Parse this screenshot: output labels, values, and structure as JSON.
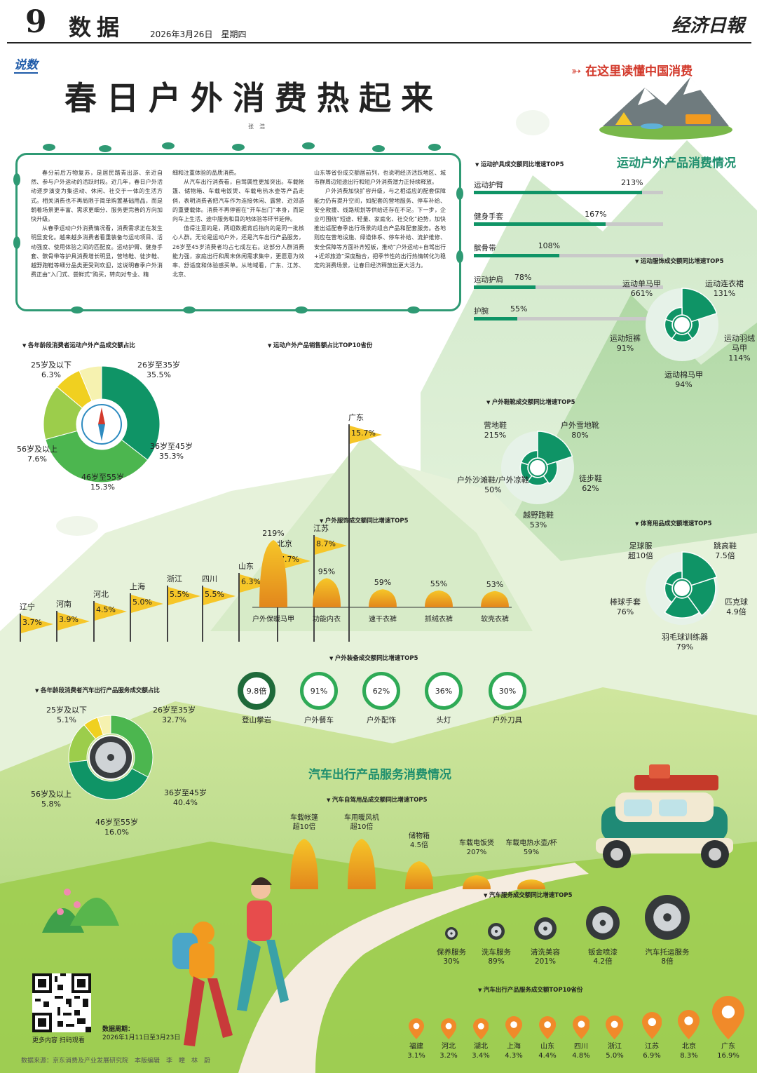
{
  "header": {
    "page_number": "9",
    "section": "数据",
    "date": "2026年3月26日　星期四",
    "logo": "经济日報"
  },
  "tag_label": "说数",
  "main_title": "春日户外消费热起来",
  "byline": "张　浩",
  "promo_tag": "在这里读懂中国消费",
  "article": {
    "col1": [
      "春分前后万物复苏，是居民踏青出游、亲近自然、参与户外运动的活跃时段。近几年，春日户外活动逐步演变为集运动、休闲、社交于一体的生活方式。相关消费也不再局限于简单购置基础用品，而是朝着场景更丰富、需求更细分、服务更完善的方向加快升级。",
      "从春季运动户外消费情况看，消费需求正在发生明显变化。越来越多消费者看重装备与运动项目、活动强度、使用体验之间的匹配度。运动护臂、健身手套、髌骨带等护具消费增长明显，营地鞋、徒步鞋、越野跑鞋等细分品类更受到欢迎，这说明春季户外消费正由“入门式、尝鲜式”购买，转向对专业、精"
    ],
    "col2": [
      "细和注重体验的品质消费。",
      "从汽车出行消费看，自驾属性更加突出。车载帐篷、储物箱、车载电饭煲、车载电热水壶等产品走俏，表明消费者把汽车作为连接休闲、露营、近郊游的重要载体。消费不再停留在“开车出门”本身，而是向车上生活、途中服务和目的地体验等环节延伸。",
      "值得注意的是，两组数据背后指向的是同一批核心人群。无论是运动户外，还是汽车出行产品服务，26岁至45岁消费者均占七成左右。这部分人群消费能力强，家庭出行和周末休闲需求集中，更愿意为效率、舒适度和体验感买单。从地域看，广东、江苏、北京、"
    ],
    "col3": [
      "山东等省份成交额居前列，也说明经济活跃地区、城市群周边短途出行和短户外消费潜力正持续释放。",
      "户外消费加快扩容升级，与之相适应的配套保障能力仍有提升空间，如配套的营地服务、停车补给、安全救援、线路规划等供给还存在不足。下一步，企业可围绕“短途、轻量、家庭化、社交化”趋势，加快推出适配春季出行场景的组合产品和配套服务。各地则应在营地设施、绿道体系、停车补给、流护维修、安全保障等方面补齐短板，推动“户外运动+自驾出行+近郊旅游”深度融合，把季节性的出行热情转化为稳定的消费场景，让春日经济释放出更大活力。"
    ]
  },
  "section_titles": {
    "outdoor": "运动户外产品消费情况",
    "auto": "汽车出行产品服务消费情况"
  },
  "age_outdoor": {
    "title": "各年龄段消费者运动户外产品成交额占比",
    "slices": [
      {
        "label": "26岁至35岁",
        "value": 35.5,
        "display": "35.5%",
        "color": "#0f9466"
      },
      {
        "label": "36岁至45岁",
        "value": 35.3,
        "display": "35.3%",
        "color": "#4cb64f"
      },
      {
        "label": "46岁至55岁",
        "value": 15.3,
        "display": "15.3%",
        "color": "#9ccd4b"
      },
      {
        "label": "56岁及以上",
        "value": 7.6,
        "display": "7.6%",
        "color": "#f0d020"
      },
      {
        "label": "25岁及以下",
        "value": 6.3,
        "display": "6.3%",
        "color": "#f6f2b0"
      }
    ]
  },
  "provinces_top10": {
    "title": "运动户外产品销售额占比TOP10省份",
    "items": [
      {
        "name": "辽宁",
        "display": "3.7%",
        "value": 3.7
      },
      {
        "name": "河南",
        "display": "3.9%",
        "value": 3.9
      },
      {
        "name": "河北",
        "display": "4.5%",
        "value": 4.5
      },
      {
        "name": "上海",
        "display": "5.0%",
        "value": 5.0
      },
      {
        "name": "浙江",
        "display": "5.5%",
        "value": 5.5
      },
      {
        "name": "四川",
        "display": "5.5%",
        "value": 5.5
      },
      {
        "name": "山东",
        "display": "6.3%",
        "value": 6.3
      },
      {
        "name": "北京",
        "display": "7.7%",
        "value": 7.7
      },
      {
        "name": "江苏",
        "display": "8.7%",
        "value": 8.7
      },
      {
        "name": "广东",
        "display": "15.7%",
        "value": 15.7
      }
    ]
  },
  "protective_gear": {
    "title": "运动护具成交额同比增速TOP5",
    "items": [
      {
        "name": "运动护臂",
        "display": "213%",
        "value": 213
      },
      {
        "name": "健身手套",
        "display": "167%",
        "value": 167
      },
      {
        "name": "髌骨带",
        "display": "108%",
        "value": 108
      },
      {
        "name": "运动护肩",
        "display": "78%",
        "value": 78
      },
      {
        "name": "护腕",
        "display": "55%",
        "value": 55
      }
    ]
  },
  "apparel": {
    "title": "运动服饰成交额同比增速TOP5",
    "items": [
      {
        "name": "运动单马甲",
        "display": "661%",
        "value": 661
      },
      {
        "name": "运动连衣裙",
        "display": "131%",
        "value": 131
      },
      {
        "name": "运动羽绒马甲",
        "display": "114%",
        "value": 114
      },
      {
        "name": "运动棉马甲",
        "display": "94%",
        "value": 94
      },
      {
        "name": "运动短裤",
        "display": "91%",
        "value": 91
      }
    ]
  },
  "shoes": {
    "title": "户外鞋靴成交额同比增速TOP5",
    "items": [
      {
        "name": "营地鞋",
        "display": "215%",
        "value": 215
      },
      {
        "name": "户外雪地靴",
        "display": "80%",
        "value": 80
      },
      {
        "name": "徒步鞋",
        "display": "62%",
        "value": 62
      },
      {
        "name": "越野跑鞋",
        "display": "53%",
        "value": 53
      },
      {
        "name": "户外沙滩鞋/户外凉鞋",
        "display": "50%",
        "value": 50
      }
    ]
  },
  "sports_goods": {
    "title": "体育用品成交额增速TOP5",
    "items": [
      {
        "name": "足球服",
        "display": "超10倍",
        "value": 10
      },
      {
        "name": "跳高鞋",
        "display": "7.5倍",
        "value": 7.5
      },
      {
        "name": "匹克球",
        "display": "4.9倍",
        "value": 4.9
      },
      {
        "name": "羽毛球训练器",
        "display": "79%",
        "value": 0.79
      },
      {
        "name": "棒球手套",
        "display": "76%",
        "value": 0.76
      }
    ]
  },
  "outdoor_clothing": {
    "title": "户外服饰成交额同比增速TOP5",
    "items": [
      {
        "name": "户外保暖马甲",
        "display": "219%",
        "value": 219
      },
      {
        "name": "功能内衣",
        "display": "95%",
        "value": 95
      },
      {
        "name": "速干衣裤",
        "display": "59%",
        "value": 59
      },
      {
        "name": "抓绒衣裤",
        "display": "55%",
        "value": 55
      },
      {
        "name": "软壳衣裤",
        "display": "53%",
        "value": 53
      }
    ]
  },
  "equipment": {
    "title": "户外装备成交额同比增速TOP5",
    "items": [
      {
        "name": "登山攀岩",
        "display": "9.8倍"
      },
      {
        "name": "户外餐车",
        "display": "91%"
      },
      {
        "name": "户外配饰",
        "display": "62%"
      },
      {
        "name": "头灯",
        "display": "36%"
      },
      {
        "name": "户外刀具",
        "display": "30%"
      }
    ]
  },
  "age_auto": {
    "title": "各年龄段消费者汽车出行产品服务成交额占比",
    "slices": [
      {
        "label": "26岁至35岁",
        "value": 32.7,
        "display": "32.7%",
        "color": "#4cb64f"
      },
      {
        "label": "36岁至45岁",
        "value": 40.4,
        "display": "40.4%",
        "color": "#0f9466"
      },
      {
        "label": "46岁至55岁",
        "value": 16.0,
        "display": "16.0%",
        "color": "#9ccd4b"
      },
      {
        "label": "56岁及以上",
        "value": 5.8,
        "display": "5.8%",
        "color": "#f0d020"
      },
      {
        "label": "25岁及以下",
        "value": 5.1,
        "display": "5.1%",
        "color": "#f6f2b0"
      }
    ]
  },
  "self_drive": {
    "title": "汽车自驾用品成交额同比增速TOP5",
    "items": [
      {
        "name": "车载帐篷",
        "display": "超10倍"
      },
      {
        "name": "车用暖风机",
        "display": "超10倍"
      },
      {
        "name": "储物箱",
        "display": "4.5倍"
      },
      {
        "name": "车载电饭煲",
        "display": "207%"
      },
      {
        "name": "车载电热水壶/杯",
        "display": "59%"
      }
    ]
  },
  "auto_services": {
    "title": "汽车服务成交额同比增速TOP5",
    "items": [
      {
        "name": "保养服务",
        "display": "30%"
      },
      {
        "name": "洗车服务",
        "display": "89%"
      },
      {
        "name": "清洗美容",
        "display": "201%"
      },
      {
        "name": "钣金喷漆",
        "display": "4.2倍"
      },
      {
        "name": "汽车托运服务",
        "display": "8倍"
      }
    ]
  },
  "auto_provinces": {
    "title": "汽车出行产品服务成交额TOP10省份",
    "items": [
      {
        "name": "福建",
        "display": "3.1%",
        "value": 3.1
      },
      {
        "name": "河北",
        "display": "3.2%",
        "value": 3.2
      },
      {
        "name": "湖北",
        "display": "3.4%",
        "value": 3.4
      },
      {
        "name": "上海",
        "display": "4.3%",
        "value": 4.3
      },
      {
        "name": "山东",
        "display": "4.4%",
        "value": 4.4
      },
      {
        "name": "四川",
        "display": "4.8%",
        "value": 4.8
      },
      {
        "name": "浙江",
        "display": "5.0%",
        "value": 5.0
      },
      {
        "name": "江苏",
        "display": "6.9%",
        "value": 6.9
      },
      {
        "name": "北京",
        "display": "8.3%",
        "value": 8.3
      },
      {
        "name": "广东",
        "display": "16.9%",
        "value": 16.9
      }
    ]
  },
  "qr_caption": "更多内容 扫码观看",
  "data_period": {
    "label": "数据周期：",
    "value": "2026年1月11日至3月23日"
  },
  "footer": "数据来源：京东消费及产业发展研究院　本版编辑　李　瞳　林　蔚",
  "colors": {
    "dark_green": "#0f9466",
    "accent_orange": "#f29a1f",
    "flag_yellow": "#f6c628",
    "title_green": "#1e8f6e"
  }
}
